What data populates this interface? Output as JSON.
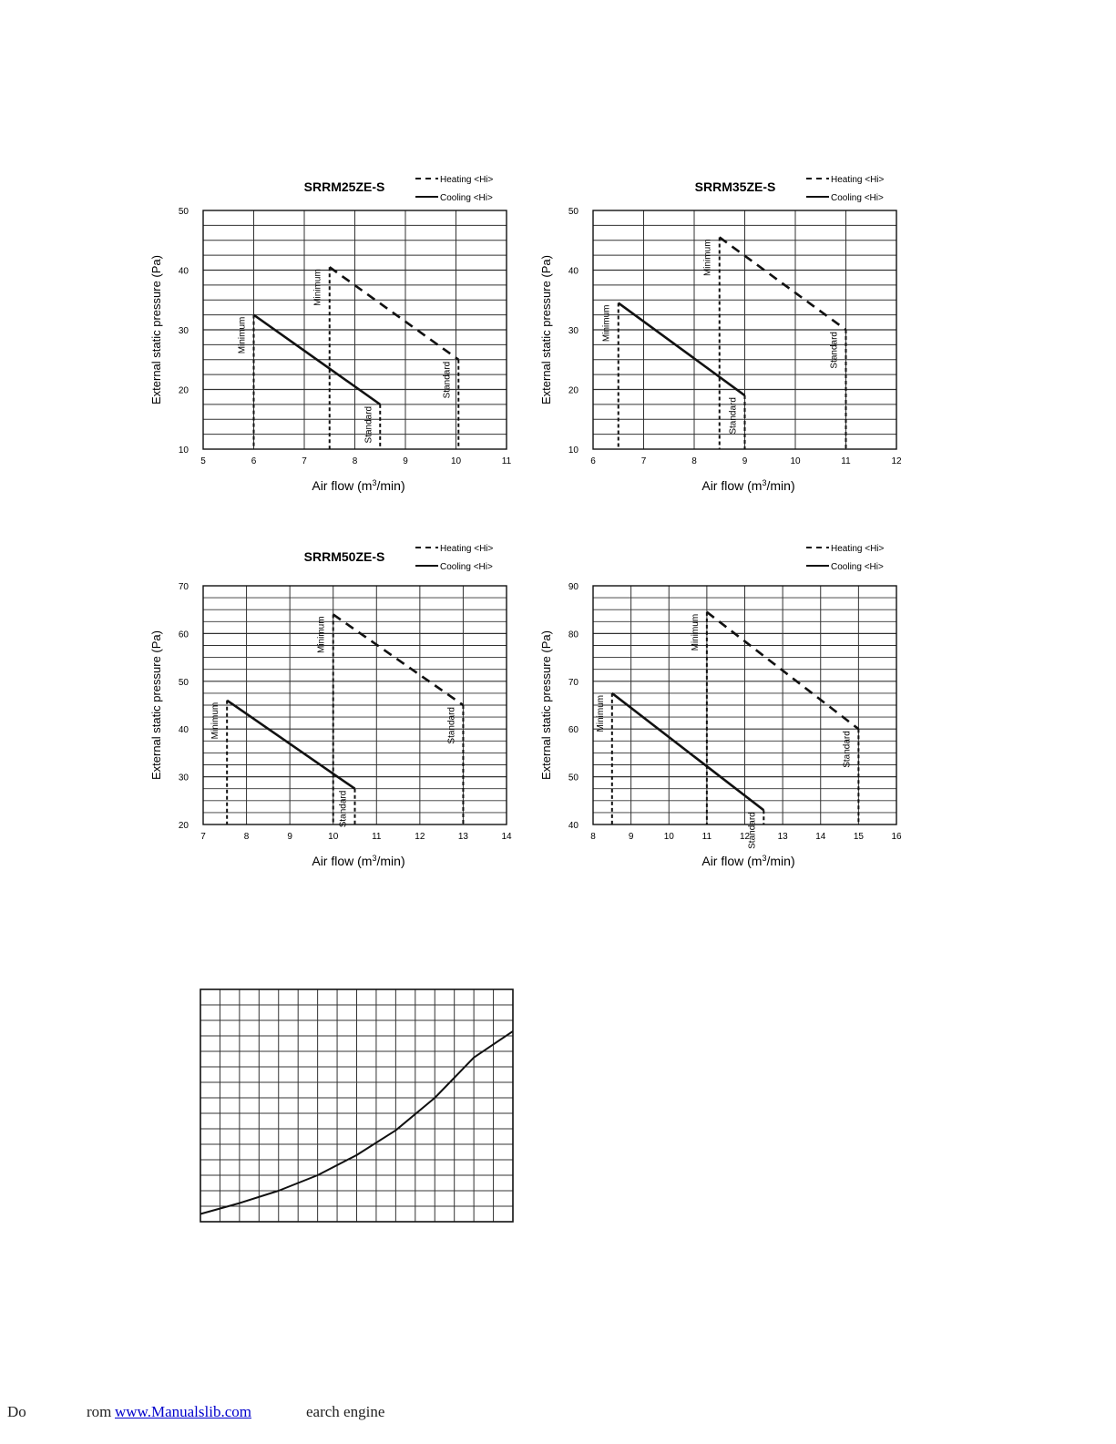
{
  "chart_data": [
    {
      "type": "line",
      "title": "SRRM25ZE-S",
      "xlabel": "Air flow (m³/min)",
      "ylabel": "External static pressure (Pa)",
      "xlim": [
        5,
        11
      ],
      "ylim": [
        10,
        50
      ],
      "xticks": [
        "5",
        "6",
        "7",
        "8",
        "9",
        "10",
        "11"
      ],
      "yticks": [
        "10",
        "20",
        "30",
        "40",
        "50"
      ],
      "grid": true,
      "legend": {
        "position": "top-right",
        "entries": [
          "Heating <Hi>",
          "Cooling <Hi>"
        ]
      },
      "series": [
        {
          "name": "Heating <Hi>",
          "style": "dashed",
          "x": [
            7.5,
            10.05
          ],
          "y": [
            40.5,
            25
          ]
        },
        {
          "name": "Cooling <Hi>",
          "style": "solid",
          "x": [
            6.0,
            8.5
          ],
          "y": [
            32.5,
            17.5
          ]
        }
      ],
      "annotations": [
        {
          "text": "Minimum",
          "x": 7.5,
          "y": 40.5
        },
        {
          "text": "Standard",
          "x": 10.05,
          "y": 25
        },
        {
          "text": "Minimum",
          "x": 6.0,
          "y": 32.5
        },
        {
          "text": "Standard",
          "x": 8.5,
          "y": 17.5
        }
      ]
    },
    {
      "type": "line",
      "title": "SRRM35ZE-S",
      "xlabel": "Air flow (m³/min)",
      "ylabel": "External static pressure (Pa)",
      "xlim": [
        6,
        12
      ],
      "ylim": [
        10,
        50
      ],
      "xticks": [
        "6",
        "7",
        "8",
        "9",
        "10",
        "11",
        "12"
      ],
      "yticks": [
        "10",
        "20",
        "30",
        "40",
        "50"
      ],
      "grid": true,
      "legend": {
        "position": "top-right",
        "entries": [
          "Heating <Hi>",
          "Cooling <Hi>"
        ]
      },
      "series": [
        {
          "name": "Heating <Hi>",
          "style": "dashed",
          "x": [
            8.5,
            11.0
          ],
          "y": [
            45.5,
            30
          ]
        },
        {
          "name": "Cooling <Hi>",
          "style": "solid",
          "x": [
            6.5,
            9.0
          ],
          "y": [
            34.5,
            19
          ]
        }
      ],
      "annotations": [
        {
          "text": "Minimum",
          "x": 8.5,
          "y": 45.5
        },
        {
          "text": "Standard",
          "x": 11.0,
          "y": 30
        },
        {
          "text": "Minimum",
          "x": 6.5,
          "y": 34.5
        },
        {
          "text": "Standard",
          "x": 9.0,
          "y": 19
        }
      ]
    },
    {
      "type": "line",
      "title": "SRRM50ZE-S",
      "xlabel": "Air flow (m³/min)",
      "ylabel": "External static pressure (Pa)",
      "xlim": [
        7,
        14
      ],
      "ylim": [
        20,
        70
      ],
      "xticks": [
        "7",
        "8",
        "9",
        "10",
        "11",
        "12",
        "13",
        "14"
      ],
      "yticks": [
        "20",
        "30",
        "40",
        "50",
        "60",
        "70"
      ],
      "grid": true,
      "legend": {
        "position": "top-right",
        "entries": [
          "Heating <Hi>",
          "Cooling <Hi>"
        ]
      },
      "series": [
        {
          "name": "Heating <Hi>",
          "style": "dashed",
          "x": [
            10.0,
            13.0
          ],
          "y": [
            64,
            45
          ]
        },
        {
          "name": "Cooling <Hi>",
          "style": "solid",
          "x": [
            7.55,
            10.5
          ],
          "y": [
            46,
            27.5
          ]
        }
      ],
      "annotations": [
        {
          "text": "Minimum",
          "x": 10.0,
          "y": 64
        },
        {
          "text": "Standard",
          "x": 13.0,
          "y": 45
        },
        {
          "text": "Minimum",
          "x": 7.55,
          "y": 46
        },
        {
          "text": "Standard",
          "x": 10.5,
          "y": 27.5
        }
      ]
    },
    {
      "type": "line",
      "title": "",
      "xlabel": "Air flow (m³/min)",
      "ylabel": "External static pressure (Pa)",
      "xlim": [
        8,
        16
      ],
      "ylim": [
        40,
        90
      ],
      "xticks": [
        "8",
        "9",
        "10",
        "11",
        "12",
        "13",
        "14",
        "15",
        "16"
      ],
      "yticks": [
        "40",
        "50",
        "60",
        "70",
        "80",
        "90"
      ],
      "grid": true,
      "legend": {
        "position": "top-right",
        "entries": [
          "Heating <Hi>",
          "Cooling <Hi>"
        ]
      },
      "series": [
        {
          "name": "Heating <Hi>",
          "style": "dashed",
          "x": [
            11.0,
            15.0
          ],
          "y": [
            84.5,
            60
          ]
        },
        {
          "name": "Cooling <Hi>",
          "style": "solid",
          "x": [
            8.5,
            12.5
          ],
          "y": [
            67.5,
            43
          ]
        }
      ],
      "annotations": [
        {
          "text": "Minimum",
          "x": 11.0,
          "y": 84.5
        },
        {
          "text": "Standard",
          "x": 15.0,
          "y": 60
        },
        {
          "text": "Minimum",
          "x": 8.5,
          "y": 67.5
        },
        {
          "text": "Standard",
          "x": 12.5,
          "y": 43
        }
      ]
    },
    {
      "type": "line",
      "title": "",
      "xlabel": "",
      "ylabel": "",
      "xlim": [
        0,
        16
      ],
      "ylim": [
        0,
        15
      ],
      "xticks": [],
      "yticks": [],
      "grid": true,
      "series": [
        {
          "style": "solid",
          "x": [
            0,
            2,
            4,
            6,
            8,
            10,
            12,
            14,
            16
          ],
          "y": [
            0.5,
            1.2,
            2.0,
            3.0,
            4.3,
            5.9,
            8.0,
            10.6,
            12.3
          ]
        }
      ]
    }
  ],
  "footer": {
    "prefix": "Do",
    "mid": "rom ",
    "link": "www.Manualslib.com",
    "suffix": "earch engine"
  }
}
